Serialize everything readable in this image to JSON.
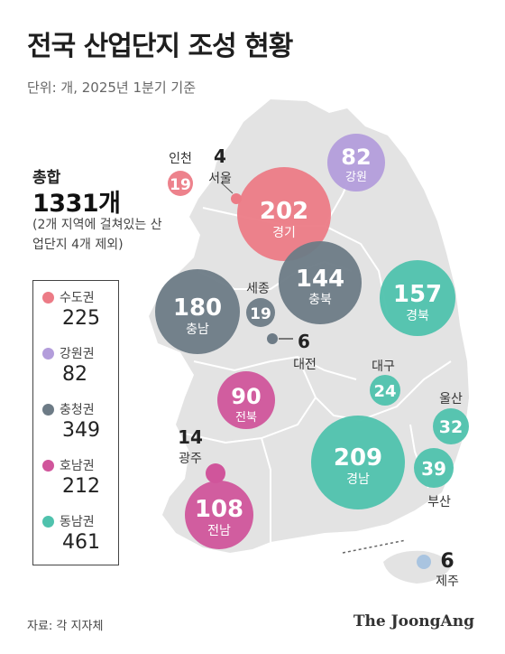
{
  "title": "전국 산업단지 조성 현황",
  "unit": "단위: 개, 2025년 1분기 기준",
  "total": {
    "label": "총합",
    "value": "1331개",
    "note": "(2개 지역에 걸쳐있는 산업단지 4개 제외)"
  },
  "legend": [
    {
      "name": "수도권",
      "value": "225",
      "color": "#ec7b86"
    },
    {
      "name": "강원권",
      "value": "82",
      "color": "#b39ddb"
    },
    {
      "name": "충청권",
      "value": "349",
      "color": "#6d7b86"
    },
    {
      "name": "호남권",
      "value": "212",
      "color": "#d0559b"
    },
    {
      "name": "동남권",
      "value": "461",
      "color": "#4fc2ad"
    }
  ],
  "regions": [
    {
      "name": "인천",
      "value": "19",
      "color": "#ec7b86"
    },
    {
      "name": "서울",
      "value": "4",
      "color": "#ec7b86"
    },
    {
      "name": "경기",
      "value": "202",
      "color": "#ec7b86"
    },
    {
      "name": "강원",
      "value": "82",
      "color": "#b39ddb"
    },
    {
      "name": "충남",
      "value": "180",
      "color": "#6d7b86"
    },
    {
      "name": "세종",
      "value": "19",
      "color": "#6d7b86"
    },
    {
      "name": "충북",
      "value": "144",
      "color": "#6d7b86"
    },
    {
      "name": "대전",
      "value": "6",
      "color": "#6d7b86"
    },
    {
      "name": "경북",
      "value": "157",
      "color": "#4fc2ad"
    },
    {
      "name": "대구",
      "value": "24",
      "color": "#4fc2ad"
    },
    {
      "name": "전북",
      "value": "90",
      "color": "#d0559b"
    },
    {
      "name": "광주",
      "value": "14",
      "color": "#d0559b"
    },
    {
      "name": "전남",
      "value": "108",
      "color": "#d0559b"
    },
    {
      "name": "경남",
      "value": "209",
      "color": "#4fc2ad"
    },
    {
      "name": "울산",
      "value": "32",
      "color": "#4fc2ad"
    },
    {
      "name": "부산",
      "value": "39",
      "color": "#4fc2ad"
    },
    {
      "name": "제주",
      "value": "6",
      "color": "#a9c4e0"
    }
  ],
  "source": "자료: 각 지자체",
  "brand": "The JoongAng"
}
